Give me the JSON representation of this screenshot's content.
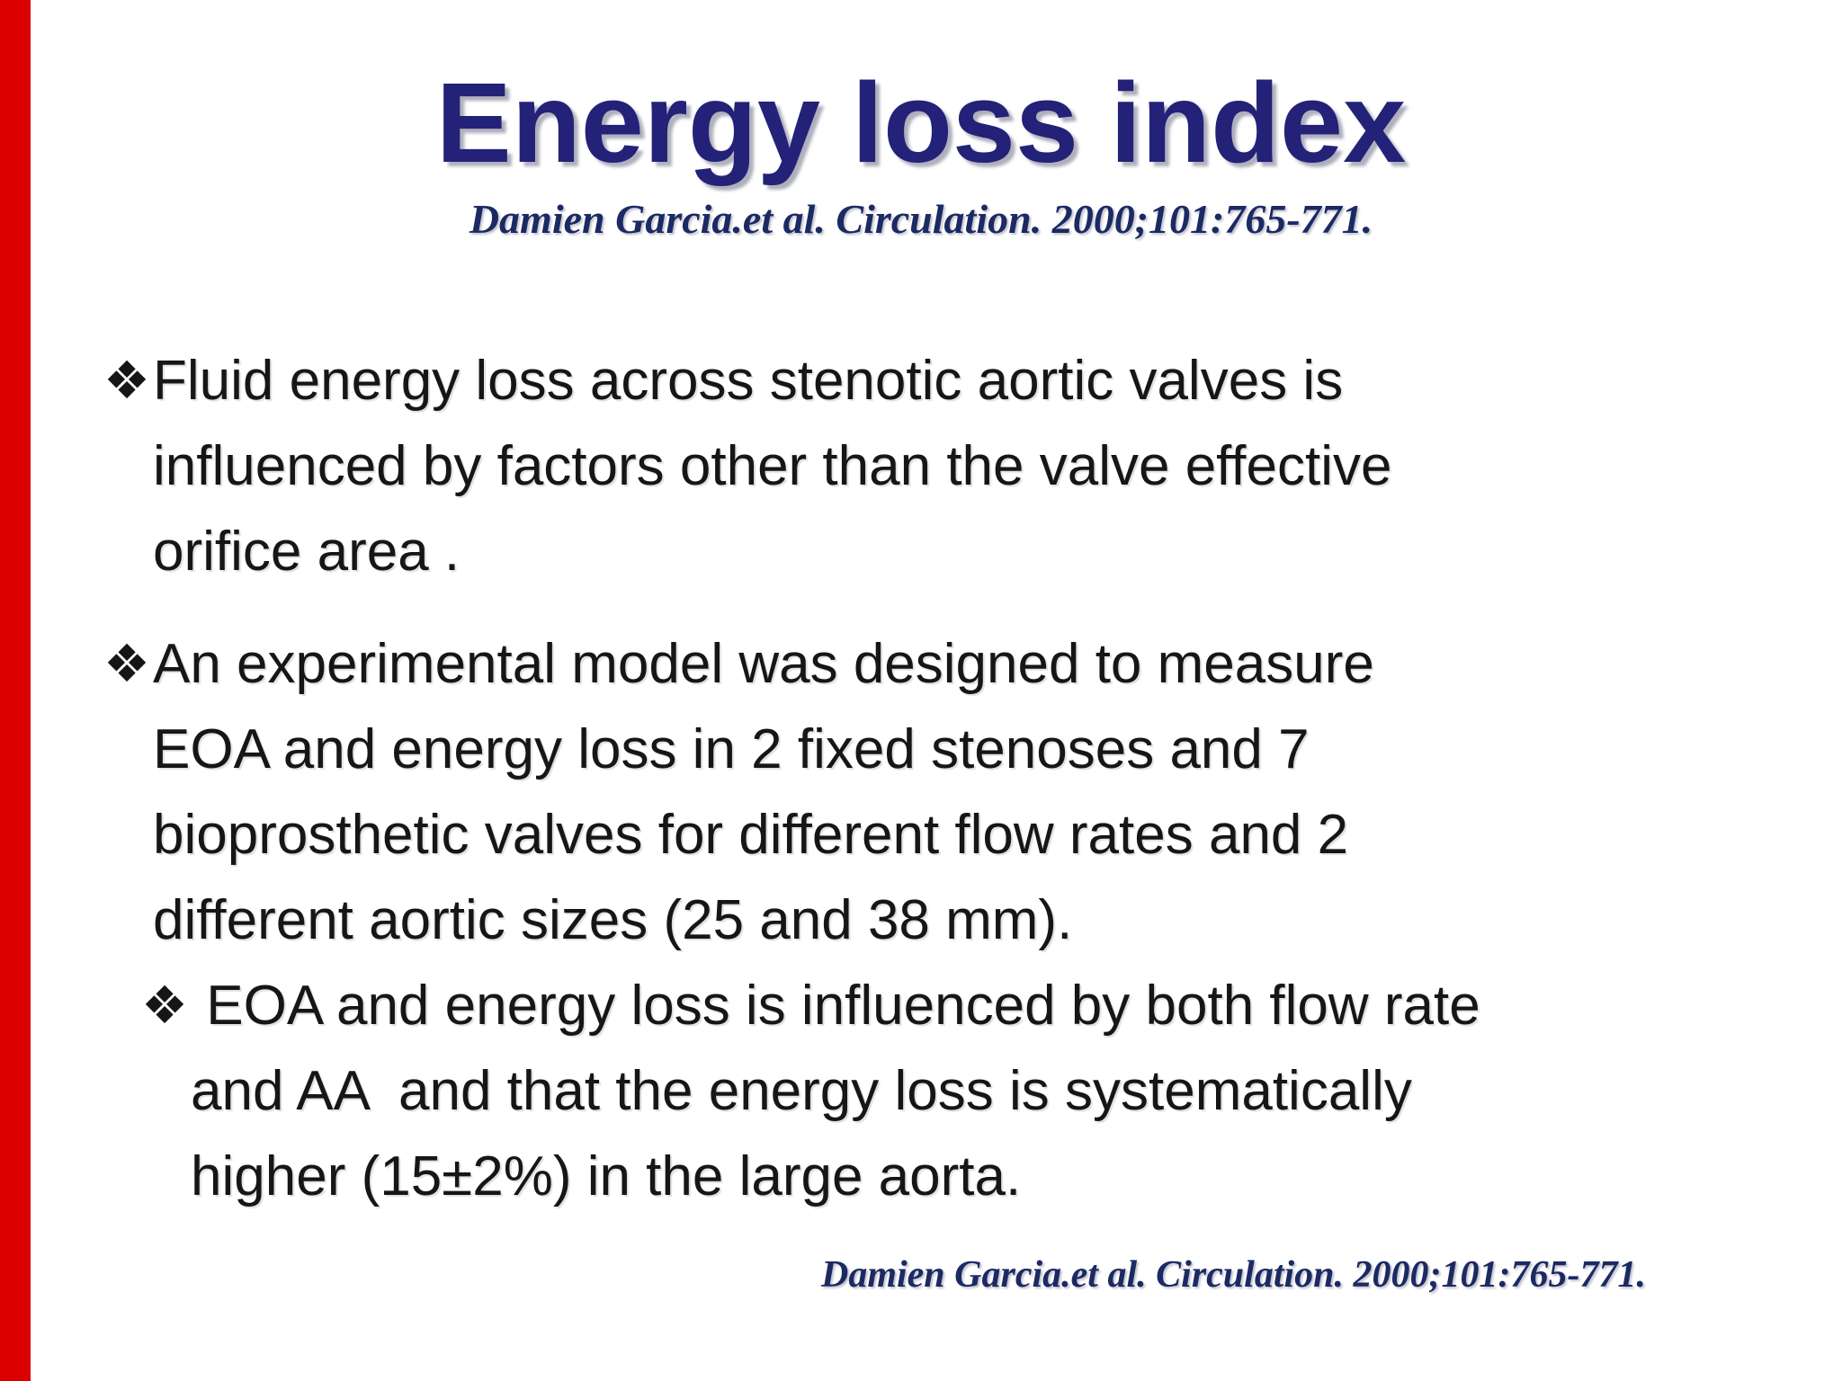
{
  "slide": {
    "title": "Energy loss index",
    "citation_top": "Damien Garcia.et al. Circulation. 2000;101:765-771.",
    "citation_bottom": "Damien Garcia.et al. Circulation. 2000;101:765-771.",
    "bullet_marker": "❖",
    "bullets": [
      {
        "lines": [
          "Fluid energy loss across stenotic aortic valves is",
          "influenced by factors other than the valve effective",
          "orifice area ."
        ]
      },
      {
        "lines": [
          "An experimental model was designed to measure",
          "EOA and energy loss in 2 fixed stenoses and 7",
          "bioprosthetic valves for different flow rates and 2",
          "different aortic sizes (25 and 38 mm)."
        ]
      },
      {
        "lines": [
          " EOA and energy loss is influenced by both flow rate",
          "and AA  and that the energy loss is systematically",
          "higher (15±2%) in the large aorta."
        ]
      }
    ],
    "colors": {
      "background": "#ffffff",
      "accent_bar": "#dd0000",
      "title": "#232278",
      "citation": "#1b2a63",
      "body": "#161616"
    }
  }
}
